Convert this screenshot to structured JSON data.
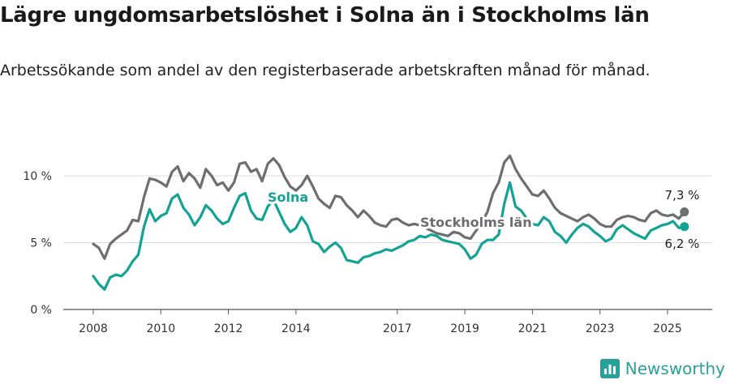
{
  "title": "Lägre ungdomsarbetslöshet i Solna än i Stockholms län",
  "subtitle": "Arbetssökande som andel av den registerbaserade arbetskraften månad för månad.",
  "brand": {
    "name": "Newsworthy",
    "icon": "newsworthy-logo-icon",
    "color": "#2aa198"
  },
  "chart_data": {
    "type": "line",
    "title": "Lägre ungdomsarbetslöshet i Solna än i Stockholms län",
    "xlabel": "",
    "ylabel": "",
    "ylim": [
      0,
      12
    ],
    "y_ticks": [
      0,
      5,
      10
    ],
    "y_tick_labels": [
      "0 %",
      "5 %",
      "10 %"
    ],
    "x_ticks": [
      2008,
      2010,
      2012,
      2014,
      2017,
      2019,
      2021,
      2023,
      2025
    ],
    "x_tick_labels": [
      "2008",
      "2010",
      "2012",
      "2014",
      "2017",
      "2019",
      "2021",
      "2023",
      "2025"
    ],
    "grid": "horizontal",
    "legend": "inline labels",
    "end_labels": [
      "7,3 %",
      "6,2 %"
    ],
    "series": [
      {
        "name": "Stockholms län",
        "color": "#6d6e71",
        "x": [
          "2008-01",
          "2008-03",
          "2008-05",
          "2008-07",
          "2008-09",
          "2008-11",
          "2009-01",
          "2009-03",
          "2009-05",
          "2009-07",
          "2009-09",
          "2009-11",
          "2010-01",
          "2010-03",
          "2010-05",
          "2010-07",
          "2010-09",
          "2010-11",
          "2011-01",
          "2011-03",
          "2011-05",
          "2011-07",
          "2011-09",
          "2011-11",
          "2012-01",
          "2012-03",
          "2012-05",
          "2012-07",
          "2012-09",
          "2012-11",
          "2013-01",
          "2013-03",
          "2013-05",
          "2013-07",
          "2013-09",
          "2013-11",
          "2014-01",
          "2014-03",
          "2014-05",
          "2014-07",
          "2014-09",
          "2014-11",
          "2015-01",
          "2015-03",
          "2015-05",
          "2015-07",
          "2015-09",
          "2015-11",
          "2016-01",
          "2016-03",
          "2016-05",
          "2016-07",
          "2016-09",
          "2016-11",
          "2017-01",
          "2017-03",
          "2017-05",
          "2017-07",
          "2017-09",
          "2017-11",
          "2018-01",
          "2018-03",
          "2018-05",
          "2018-07",
          "2018-09",
          "2018-11",
          "2019-01",
          "2019-03",
          "2019-05",
          "2019-07",
          "2019-09",
          "2019-11",
          "2020-01",
          "2020-03",
          "2020-05",
          "2020-07",
          "2020-09",
          "2020-11",
          "2021-01",
          "2021-03",
          "2021-05",
          "2021-07",
          "2021-09",
          "2021-11",
          "2022-01",
          "2022-03",
          "2022-05",
          "2022-07",
          "2022-09",
          "2022-11",
          "2023-01",
          "2023-03",
          "2023-05",
          "2023-07",
          "2023-09",
          "2023-11",
          "2024-01",
          "2024-03",
          "2024-05",
          "2024-07",
          "2024-09",
          "2024-11",
          "2025-01",
          "2025-03",
          "2025-05",
          "2025-07"
        ],
        "values": [
          4.9,
          4.6,
          3.8,
          4.9,
          5.3,
          5.6,
          5.9,
          6.7,
          6.6,
          8.4,
          9.8,
          9.7,
          9.5,
          9.2,
          10.3,
          10.7,
          9.6,
          10.2,
          9.8,
          9.1,
          10.5,
          10.0,
          9.3,
          9.5,
          8.9,
          9.5,
          10.9,
          11.0,
          10.3,
          10.5,
          9.6,
          10.9,
          11.3,
          10.8,
          9.9,
          9.2,
          8.9,
          9.3,
          10.0,
          9.2,
          8.3,
          7.9,
          7.6,
          8.5,
          8.4,
          7.8,
          7.4,
          6.9,
          7.4,
          7.0,
          6.5,
          6.3,
          6.2,
          6.7,
          6.8,
          6.5,
          6.3,
          6.4,
          6.3,
          6.1,
          5.9,
          5.7,
          5.6,
          5.5,
          5.8,
          5.7,
          5.4,
          5.3,
          5.9,
          6.5,
          7.3,
          8.7,
          9.5,
          11.0,
          11.5,
          10.5,
          9.8,
          9.2,
          8.6,
          8.5,
          8.9,
          8.3,
          7.6,
          7.2,
          7.0,
          6.8,
          6.6,
          6.9,
          7.1,
          6.8,
          6.4,
          6.2,
          6.2,
          6.7,
          6.9,
          7.0,
          6.9,
          6.7,
          6.6,
          7.2,
          7.4,
          7.1,
          7.0,
          7.1,
          6.8,
          7.3
        ]
      },
      {
        "name": "Solna",
        "color": "#12a394",
        "x": [
          "2008-01",
          "2008-03",
          "2008-05",
          "2008-07",
          "2008-09",
          "2008-11",
          "2009-01",
          "2009-03",
          "2009-05",
          "2009-07",
          "2009-09",
          "2009-11",
          "2010-01",
          "2010-03",
          "2010-05",
          "2010-07",
          "2010-09",
          "2010-11",
          "2011-01",
          "2011-03",
          "2011-05",
          "2011-07",
          "2011-09",
          "2011-11",
          "2012-01",
          "2012-03",
          "2012-05",
          "2012-07",
          "2012-09",
          "2012-11",
          "2013-01",
          "2013-03",
          "2013-05",
          "2013-07",
          "2013-09",
          "2013-11",
          "2014-01",
          "2014-03",
          "2014-05",
          "2014-07",
          "2014-09",
          "2014-11",
          "2015-01",
          "2015-03",
          "2015-05",
          "2015-07",
          "2015-09",
          "2015-11",
          "2016-01",
          "2016-03",
          "2016-05",
          "2016-07",
          "2016-09",
          "2016-11",
          "2017-01",
          "2017-03",
          "2017-05",
          "2017-07",
          "2017-09",
          "2017-11",
          "2018-01",
          "2018-03",
          "2018-05",
          "2018-07",
          "2018-09",
          "2018-11",
          "2019-01",
          "2019-03",
          "2019-05",
          "2019-07",
          "2019-09",
          "2019-11",
          "2020-01",
          "2020-03",
          "2020-05",
          "2020-07",
          "2020-09",
          "2020-11",
          "2021-01",
          "2021-03",
          "2021-05",
          "2021-07",
          "2021-09",
          "2021-11",
          "2022-01",
          "2022-03",
          "2022-05",
          "2022-07",
          "2022-09",
          "2022-11",
          "2023-01",
          "2023-03",
          "2023-05",
          "2023-07",
          "2023-09",
          "2023-11",
          "2024-01",
          "2024-03",
          "2024-05",
          "2024-07",
          "2024-09",
          "2024-11",
          "2025-01",
          "2025-03",
          "2025-05",
          "2025-07"
        ],
        "values": [
          2.5,
          1.9,
          1.5,
          2.4,
          2.6,
          2.5,
          2.9,
          3.6,
          4.1,
          6.2,
          7.5,
          6.6,
          7.0,
          7.2,
          8.3,
          8.6,
          7.6,
          7.1,
          6.3,
          6.9,
          7.8,
          7.4,
          6.8,
          6.4,
          6.6,
          7.6,
          8.5,
          8.7,
          7.4,
          6.8,
          6.7,
          7.7,
          8.2,
          7.3,
          6.4,
          5.8,
          6.1,
          6.9,
          6.3,
          5.1,
          4.9,
          4.3,
          4.7,
          5.0,
          4.6,
          3.7,
          3.6,
          3.5,
          3.9,
          4.0,
          4.2,
          4.3,
          4.5,
          4.4,
          4.6,
          4.8,
          5.1,
          5.2,
          5.5,
          5.4,
          5.6,
          5.5,
          5.2,
          5.1,
          5.0,
          4.9,
          4.5,
          3.8,
          4.1,
          4.9,
          5.2,
          5.2,
          5.6,
          7.9,
          9.5,
          7.7,
          7.4,
          6.8,
          6.4,
          6.3,
          6.9,
          6.6,
          5.8,
          5.5,
          5.0,
          5.6,
          6.1,
          6.4,
          6.2,
          5.8,
          5.5,
          5.1,
          5.3,
          6.0,
          6.3,
          6.0,
          5.7,
          5.5,
          5.3,
          5.9,
          6.1,
          6.3,
          6.4,
          6.6,
          6.1,
          6.2
        ]
      }
    ]
  }
}
